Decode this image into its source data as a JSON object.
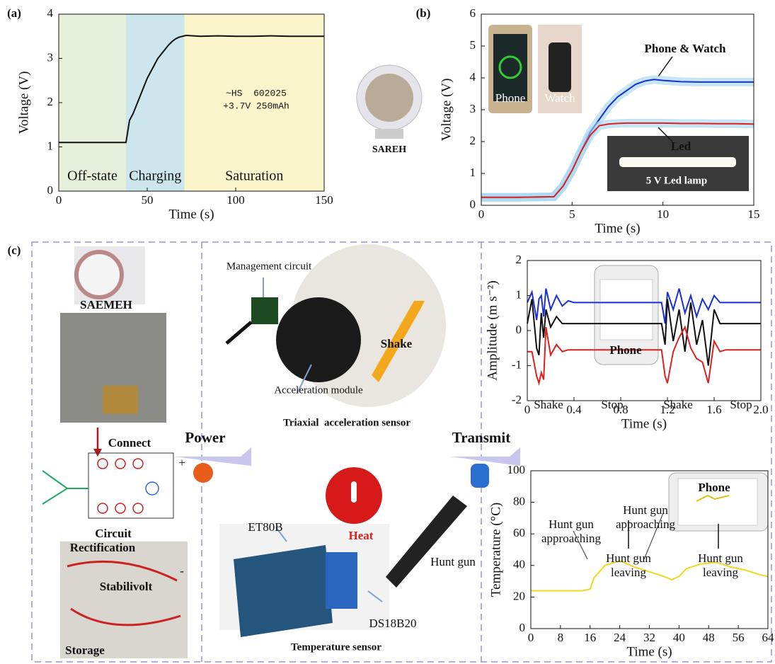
{
  "panel_labels": [
    "(a)",
    "(b)",
    "(c)"
  ],
  "chart_data": [
    {
      "type": "line",
      "xlabel": "Time (s)",
      "ylabel": "Voltage (V)",
      "xlim": [
        0,
        150
      ],
      "ylim": [
        0,
        4
      ],
      "xticks": [
        0,
        50,
        100,
        150
      ],
      "yticks": [
        0,
        1,
        2,
        3,
        4
      ],
      "regions": [
        {
          "name": "Off-state",
          "range": [
            0,
            38
          ],
          "color": "#e6efd9"
        },
        {
          "name": "Charging",
          "range": [
            38,
            71
          ],
          "color": "#cde6ee"
        },
        {
          "name": "Saturation",
          "range": [
            71,
            150
          ],
          "color": "#fbf5cb"
        }
      ],
      "x": [
        0,
        10,
        20,
        30,
        38,
        39,
        40,
        42,
        44,
        46,
        48,
        50,
        52,
        54,
        56,
        58,
        60,
        62,
        64,
        66,
        68,
        70,
        72,
        80,
        90,
        100,
        110,
        120,
        130,
        140,
        150
      ],
      "series": [
        {
          "color": "#111111",
          "values": [
            1.1,
            1.1,
            1.1,
            1.1,
            1.1,
            1.35,
            1.6,
            1.75,
            1.95,
            2.15,
            2.35,
            2.55,
            2.7,
            2.85,
            3.0,
            3.1,
            3.2,
            3.3,
            3.38,
            3.44,
            3.48,
            3.5,
            3.52,
            3.5,
            3.51,
            3.5,
            3.5,
            3.51,
            3.5,
            3.5,
            3.5
          ]
        }
      ]
    },
    {
      "type": "line",
      "xlabel": "Time (s)",
      "ylabel": "Voltage (V)",
      "xlim": [
        0,
        15
      ],
      "ylim": [
        0,
        6
      ],
      "xticks": [
        0,
        5,
        10,
        15
      ],
      "yticks": [
        0,
        1,
        2,
        3,
        4,
        5,
        6
      ],
      "x": [
        0,
        2,
        4,
        4.5,
        5,
        5.5,
        6,
        6.5,
        7,
        7.5,
        8,
        8.5,
        9,
        9.5,
        10,
        11,
        12,
        13,
        14,
        15
      ],
      "series": [
        {
          "name": "Phone & Watch",
          "color": "#1a2fd6",
          "band": true,
          "values": [
            0.25,
            0.25,
            0.27,
            0.6,
            1.1,
            1.7,
            2.3,
            2.7,
            3.1,
            3.4,
            3.6,
            3.8,
            3.9,
            3.95,
            3.92,
            3.88,
            3.87,
            3.87,
            3.87,
            3.87
          ]
        },
        {
          "name": "Led",
          "color": "#e02020",
          "band": true,
          "values": [
            0.25,
            0.25,
            0.27,
            0.6,
            1.1,
            1.7,
            2.2,
            2.5,
            2.55,
            2.57,
            2.58,
            2.58,
            2.58,
            2.58,
            2.58,
            2.57,
            2.57,
            2.56,
            2.56,
            2.55
          ]
        }
      ]
    },
    {
      "type": "line",
      "xlabel": "Time (s)",
      "ylabel": "Amplitude (m s⁻²)",
      "xlim": [
        0,
        2
      ],
      "ylim": [
        -2,
        2
      ],
      "xticks": [
        0,
        0.4,
        0.8,
        1.2,
        1.6,
        {
          "value": 2,
          "label": "2.0"
        }
      ],
      "yticks": [
        -2,
        -1,
        0,
        1,
        2
      ],
      "annotations": [
        "Shake",
        "Stop",
        "Shake",
        "Stop"
      ],
      "x": [
        0,
        0.04,
        0.08,
        0.1,
        0.12,
        0.14,
        0.16,
        0.2,
        0.25,
        0.3,
        0.35,
        0.4,
        0.6,
        0.8,
        1.0,
        1.15,
        1.18,
        1.2,
        1.25,
        1.3,
        1.35,
        1.4,
        1.45,
        1.5,
        1.55,
        1.6,
        1.65,
        1.7,
        1.8,
        2.0
      ],
      "series": [
        {
          "color": "#1a2fd6",
          "values": [
            0.8,
            1.1,
            0.3,
            0.9,
            1.0,
            0.4,
            1.2,
            0.6,
            1.0,
            0.7,
            0.85,
            0.8,
            0.8,
            0.8,
            0.8,
            0.8,
            0.2,
            1.1,
            0.6,
            1.2,
            0.5,
            1.0,
            0.4,
            0.9,
            0.6,
            1.0,
            0.8,
            0.8,
            0.8,
            0.8
          ]
        },
        {
          "color": "#111111",
          "values": [
            0.2,
            0.9,
            -0.5,
            -0.7,
            0.5,
            -0.2,
            0.6,
            0.1,
            0.4,
            0.2,
            0.2,
            0.2,
            0.2,
            0.2,
            0.2,
            0.2,
            -0.4,
            0.9,
            -0.3,
            0.6,
            -0.6,
            0.8,
            -0.4,
            0.3,
            -1.0,
            0.6,
            0.2,
            0.2,
            0.2,
            0.2
          ]
        },
        {
          "color": "#e02020",
          "values": [
            -0.6,
            -0.6,
            -1.3,
            -1.5,
            -1.2,
            -1.4,
            0.1,
            -0.7,
            -0.4,
            -0.6,
            -0.55,
            -0.55,
            -0.55,
            -0.55,
            -0.55,
            -0.55,
            -1.3,
            -1.5,
            -0.6,
            -0.2,
            0.1,
            -0.5,
            -0.8,
            -0.9,
            -1.5,
            -0.3,
            -0.6,
            -0.55,
            -0.55,
            -0.55
          ]
        }
      ]
    },
    {
      "type": "line",
      "xlabel": "Time (s)",
      "ylabel": "Temperature (°C)",
      "xlim": [
        0,
        64
      ],
      "ylim": [
        0,
        100
      ],
      "xticks": [
        0,
        8,
        16,
        24,
        32,
        40,
        48,
        56,
        64
      ],
      "yticks": [
        0,
        20,
        40,
        60,
        80,
        100
      ],
      "annotations": [
        [
          "Hunt gun",
          "approaching"
        ],
        [
          "Hunt gun",
          "leaving"
        ],
        [
          "Hunt gun",
          "approaching"
        ],
        [
          "Hunt gun",
          "leaving"
        ]
      ],
      "x": [
        0,
        8,
        14,
        16,
        17,
        20,
        24,
        28,
        32,
        36,
        38,
        40,
        42,
        46,
        50,
        54,
        58,
        62,
        64
      ],
      "series": [
        {
          "color": "#f0d820",
          "values": [
            24,
            24,
            24,
            25,
            32,
            40,
            43,
            39,
            36,
            33,
            31,
            33,
            38,
            41,
            42,
            39,
            37,
            34,
            33
          ]
        }
      ]
    }
  ],
  "photo_labels": {
    "battery": [
      "~HS  602025",
      "+3.7V 250mAh"
    ],
    "device": "SAREH",
    "phone": "Phone",
    "watch": "Watch",
    "lamp": "5 V Led lamp",
    "app": "Phone"
  },
  "diagram_labels": [
    "SAEMEH",
    "Connect",
    "Circuit",
    "Rectification",
    "Stabilivolt",
    "Storage",
    "+",
    "-",
    "Power",
    "Management circuit",
    "Acceleration module",
    "Shake",
    "Triaxial  acceleration sensor",
    "ET80B",
    "Heat",
    "Hunt gun",
    "DS18B20",
    "Temperature sensor",
    "Transmit"
  ]
}
